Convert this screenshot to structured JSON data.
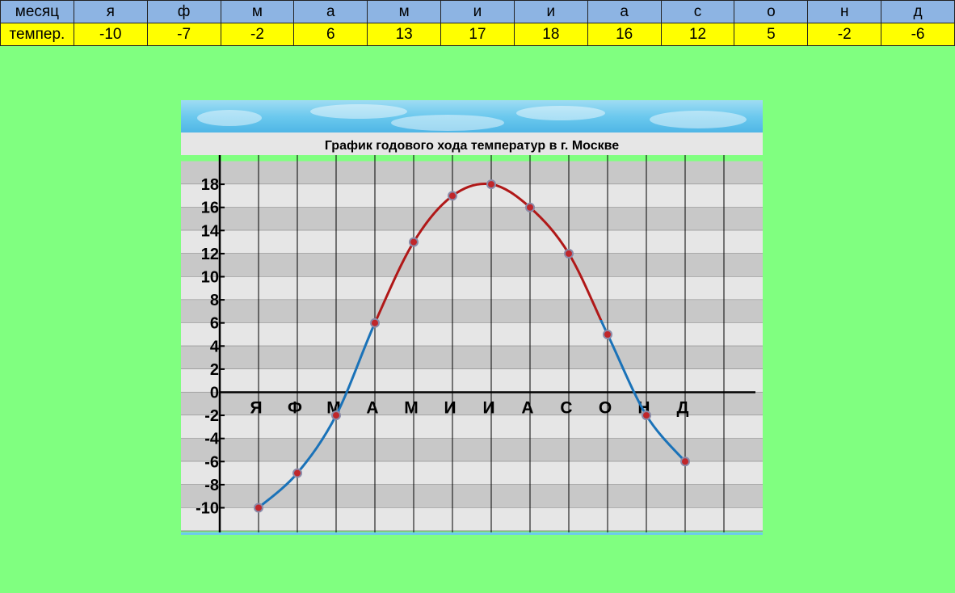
{
  "table": {
    "row1_label": "месяц",
    "months": [
      "я",
      "ф",
      "м",
      "а",
      "м",
      "и",
      "и",
      "а",
      "с",
      "о",
      "н",
      "д"
    ],
    "row2_label": "темпер.",
    "temps": [
      "-10",
      "-7",
      "-2",
      "6",
      "13",
      "17",
      "18",
      "16",
      "12",
      "5",
      "-2",
      "-6"
    ]
  },
  "chart_data": {
    "type": "line",
    "title": "График годового хода температур в г. Москве",
    "categories": [
      "Я",
      "Ф",
      "М",
      "А",
      "М",
      "И",
      "И",
      "А",
      "С",
      "О",
      "Н",
      "Д"
    ],
    "values": [
      -10,
      -7,
      -2,
      6,
      13,
      17,
      18,
      16,
      12,
      5,
      -2,
      -6
    ],
    "ylim": [
      -12,
      20
    ],
    "yticks": [
      18,
      16,
      14,
      12,
      10,
      8,
      6,
      4,
      2,
      0,
      -2,
      -4,
      -6,
      -8,
      -10
    ],
    "grid": true,
    "colors": {
      "positive_line": "#b01818",
      "negative_line": "#1a72b8",
      "marker": "#c0262a",
      "marker_edge": "#8a8aa8",
      "band_dark": "#c8c8c8",
      "band_light": "#e6e6e6",
      "sky": "#6cc9ee"
    }
  }
}
